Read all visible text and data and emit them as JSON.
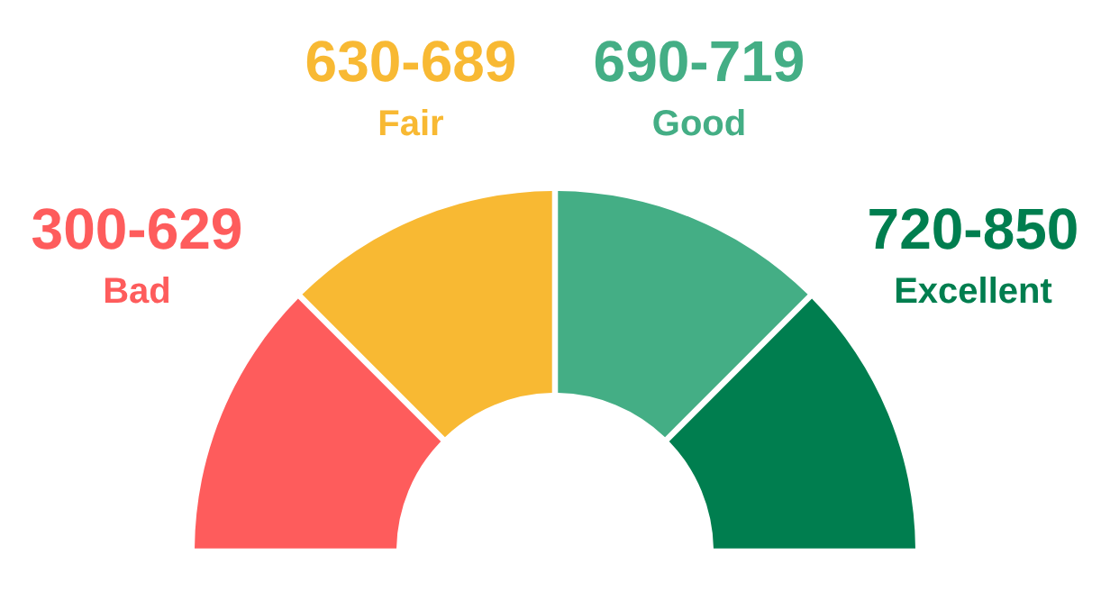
{
  "chart_data": {
    "type": "donut",
    "categories": [
      "Bad",
      "Fair",
      "Good",
      "Excellent"
    ],
    "values": [
      25,
      25,
      25,
      25
    ],
    "colors": [
      "#fe5c5c",
      "#f8b933",
      "#44ae85",
      "#007e4f"
    ],
    "value_labels": [
      "300-629",
      "630-689",
      "690-719",
      "720-850"
    ]
  }
}
